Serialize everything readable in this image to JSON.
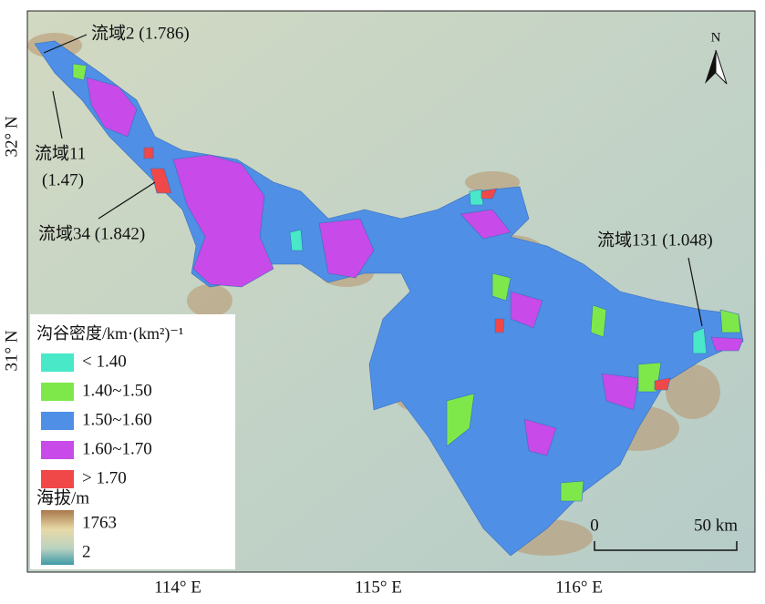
{
  "map": {
    "north_label": "N",
    "latitude_labels": [
      "32° N",
      "31° N"
    ],
    "longitude_labels": [
      "114° E",
      "115° E",
      "116° E"
    ],
    "annotations": [
      {
        "lines": [
          "流域2 (1.786)"
        ]
      },
      {
        "lines": [
          "流域11",
          "(1.47)"
        ]
      },
      {
        "lines": [
          "流域34 (1.842)"
        ]
      },
      {
        "lines": [
          "流域131 (1.048)"
        ]
      }
    ],
    "legend": {
      "title": "沟谷密度/km·(km²)⁻¹",
      "items": [
        {
          "label": "< 1.40",
          "color": "#48e8c8"
        },
        {
          "label": "1.40~1.50",
          "color": "#7ee84a"
        },
        {
          "label": "1.50~1.60",
          "color": "#4f8fe6"
        },
        {
          "label": "1.60~1.70",
          "color": "#c84ae8"
        },
        {
          "label": "> 1.70",
          "color": "#f04848"
        }
      ],
      "elevation_title": "海拔/m",
      "elevation_max": "1763",
      "elevation_min": "2"
    },
    "scale_bar": {
      "start": "0",
      "end": "50 km"
    }
  }
}
